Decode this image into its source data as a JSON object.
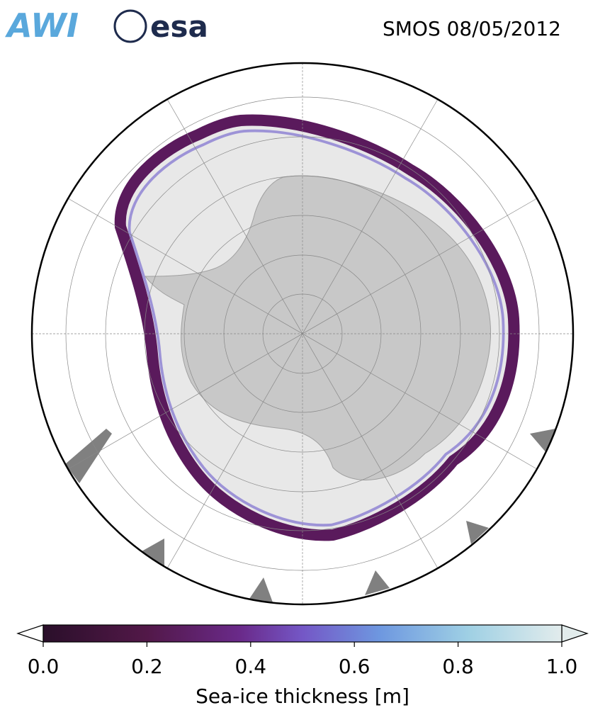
{
  "header": {
    "logos": [
      "AWI",
      "esa"
    ],
    "title": "SMOS 08/05/2012"
  },
  "colorbar": {
    "lim": [
      0,
      1
    ],
    "ticks": [
      {
        "value": 0,
        "label": "0.0"
      },
      {
        "value": 0.2,
        "label": "0.2"
      },
      {
        "value": 0.4,
        "label": "0.4"
      },
      {
        "value": 0.6,
        "label": "0.6"
      },
      {
        "value": 0.8,
        "label": "0.8"
      },
      {
        "value": 1,
        "label": "1.0"
      }
    ],
    "label": "Sea-ice thickness [m]"
  }
}
